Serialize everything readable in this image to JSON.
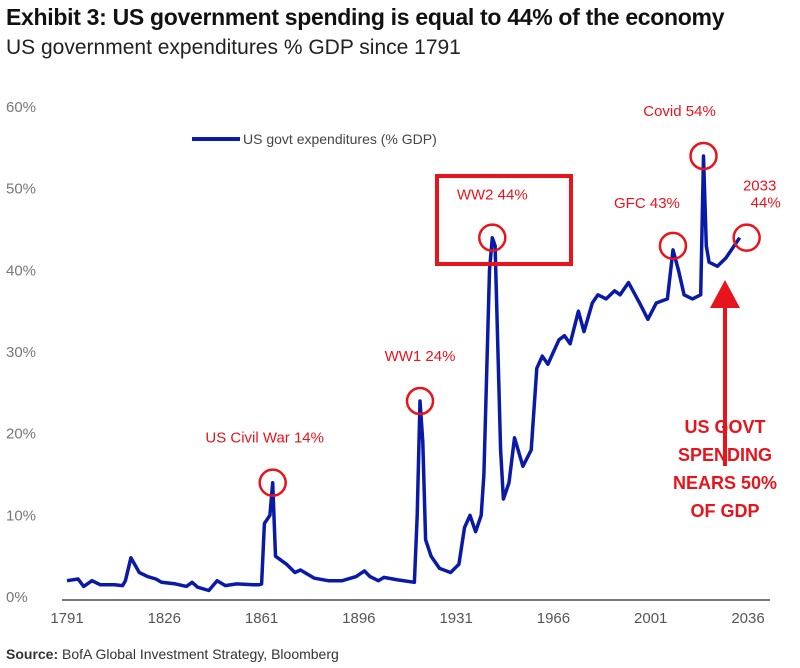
{
  "title": "Exhibit 3: US government spending is equal to 44% of the economy",
  "subtitle": "US government expenditures % GDP since 1791",
  "source_label": "Source:",
  "source_text": "BofA Global Investment Strategy, Bloomberg",
  "chart_data": {
    "type": "line",
    "xlim": [
      1791,
      2036
    ],
    "ylim": [
      0,
      60
    ],
    "x_ticks": [
      "1791",
      "1826",
      "1861",
      "1896",
      "1931",
      "1966",
      "2001",
      "2036"
    ],
    "y_ticks": [
      "0%",
      "10%",
      "20%",
      "30%",
      "40%",
      "50%",
      "60%"
    ],
    "grid": false,
    "legend_position": "top-center",
    "series": [
      {
        "name": "US govt expenditures (% GDP)",
        "color": "#0a1aa8",
        "points": [
          [
            1791,
            2
          ],
          [
            1795,
            2.2
          ],
          [
            1797,
            1.3
          ],
          [
            1800,
            2
          ],
          [
            1803,
            1.5
          ],
          [
            1808,
            1.5
          ],
          [
            1811,
            1.4
          ],
          [
            1812,
            2
          ],
          [
            1814,
            4.8
          ],
          [
            1817,
            3
          ],
          [
            1820,
            2.5
          ],
          [
            1823,
            2.2
          ],
          [
            1825,
            1.8
          ],
          [
            1830,
            1.6
          ],
          [
            1834,
            1.3
          ],
          [
            1836,
            1.8
          ],
          [
            1838,
            1.2
          ],
          [
            1842,
            0.8
          ],
          [
            1845,
            2
          ],
          [
            1848,
            1.4
          ],
          [
            1852,
            1.6
          ],
          [
            1858,
            1.5
          ],
          [
            1860,
            1.5
          ],
          [
            1861,
            1.6
          ],
          [
            1862,
            9
          ],
          [
            1864,
            10
          ],
          [
            1865,
            14
          ],
          [
            1866,
            5
          ],
          [
            1870,
            4
          ],
          [
            1873,
            3
          ],
          [
            1875,
            3.3
          ],
          [
            1880,
            2.3
          ],
          [
            1885,
            2
          ],
          [
            1890,
            2
          ],
          [
            1895,
            2.5
          ],
          [
            1898,
            3.2
          ],
          [
            1900,
            2.5
          ],
          [
            1903,
            2
          ],
          [
            1905,
            2.4
          ],
          [
            1910,
            2.1
          ],
          [
            1916,
            1.8
          ],
          [
            1917,
            10
          ],
          [
            1918,
            24
          ],
          [
            1919,
            19
          ],
          [
            1920,
            7
          ],
          [
            1922,
            5
          ],
          [
            1925,
            3.5
          ],
          [
            1929,
            3
          ],
          [
            1932,
            4
          ],
          [
            1934,
            8.5
          ],
          [
            1936,
            10
          ],
          [
            1938,
            8
          ],
          [
            1940,
            10
          ],
          [
            1941,
            15
          ],
          [
            1943,
            40
          ],
          [
            1944,
            44
          ],
          [
            1945,
            43
          ],
          [
            1947,
            18
          ],
          [
            1948,
            12
          ],
          [
            1950,
            14
          ],
          [
            1952,
            19.5
          ],
          [
            1955,
            16
          ],
          [
            1958,
            18
          ],
          [
            1960,
            28
          ],
          [
            1962,
            29.5
          ],
          [
            1964,
            28.5
          ],
          [
            1966,
            30
          ],
          [
            1968,
            31.5
          ],
          [
            1970,
            32
          ],
          [
            1972,
            31
          ],
          [
            1975,
            35
          ],
          [
            1977,
            32.5
          ],
          [
            1980,
            36
          ],
          [
            1982,
            37
          ],
          [
            1985,
            36.5
          ],
          [
            1988,
            37.5
          ],
          [
            1990,
            37
          ],
          [
            1993,
            38.5
          ],
          [
            1997,
            36
          ],
          [
            2000,
            34
          ],
          [
            2003,
            36
          ],
          [
            2007,
            36.5
          ],
          [
            2009,
            42.5
          ],
          [
            2011,
            40
          ],
          [
            2013,
            37
          ],
          [
            2016,
            36.5
          ],
          [
            2019,
            37
          ],
          [
            2020,
            54
          ],
          [
            2021,
            43
          ],
          [
            2022,
            41
          ],
          [
            2025,
            40.5
          ],
          [
            2028,
            41.5
          ],
          [
            2033,
            44
          ]
        ]
      }
    ],
    "annotations": [
      {
        "text": "US Civil War 14%",
        "x": 1865,
        "y": 14
      },
      {
        "text": "WW1 24%",
        "x": 1918,
        "y": 24
      },
      {
        "text": "WW2 44%",
        "x": 1944,
        "y": 44
      },
      {
        "text": "GFC 43%",
        "x": 2009,
        "y": 43
      },
      {
        "text": "Covid 54%",
        "x": 2020,
        "y": 54
      },
      {
        "text": "2033 44%",
        "x": 2033,
        "y": 44
      }
    ],
    "callout": [
      "US GOVT",
      "SPENDING",
      "NEARS 50%",
      "OF GDP"
    ],
    "annotation_color": "#e8141c"
  }
}
